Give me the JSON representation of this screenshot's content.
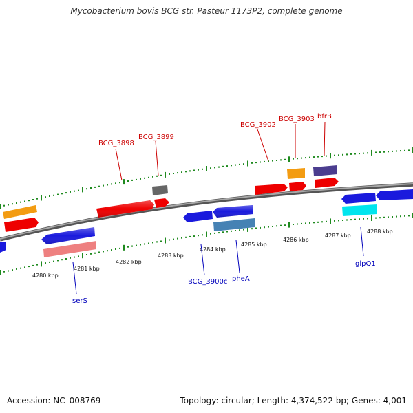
{
  "title": "Mycobacterium bovis BCG str. Pasteur 1173P2, complete genome",
  "footer": {
    "accession": "Accession: NC_008769",
    "topology": "Topology: circular; Length: 4,374,522 bp; Genes: 4,001"
  },
  "colors": {
    "backbone": "#7a7a7a",
    "tick": "#1f8a1f",
    "forward_label": "#cc0000",
    "reverse_label": "#0000bb"
  },
  "scale": {
    "unit": "kbp",
    "labels": [
      "4280 kbp",
      "4281 kbp",
      "4282 kbp",
      "4283 kbp",
      "4284 kbp",
      "4285 kbp",
      "4286 kbp",
      "4287 kbp",
      "4288 kbp"
    ]
  },
  "gene_labels": {
    "forward": [
      "BCG_3898",
      "BCG_3899",
      "BCG_3902",
      "BCG_3903",
      "bfrB"
    ],
    "reverse": [
      "serS",
      "BCG_3900c",
      "pheA",
      "glpQ1"
    ]
  },
  "features": [
    {
      "name": "orange-feature",
      "color": "#f39c12"
    },
    {
      "name": "red-feature",
      "color": "#ee0000"
    },
    {
      "name": "gray-feature",
      "color": "#666666"
    },
    {
      "name": "purple-feature",
      "color": "#4b3d8f"
    },
    {
      "name": "blue-feature",
      "color": "#1a1add"
    },
    {
      "name": "pink-feature",
      "color": "#ee8080"
    },
    {
      "name": "steelblue-feature",
      "color": "#4682b4"
    },
    {
      "name": "cyan-feature",
      "color": "#00e5ee"
    }
  ]
}
